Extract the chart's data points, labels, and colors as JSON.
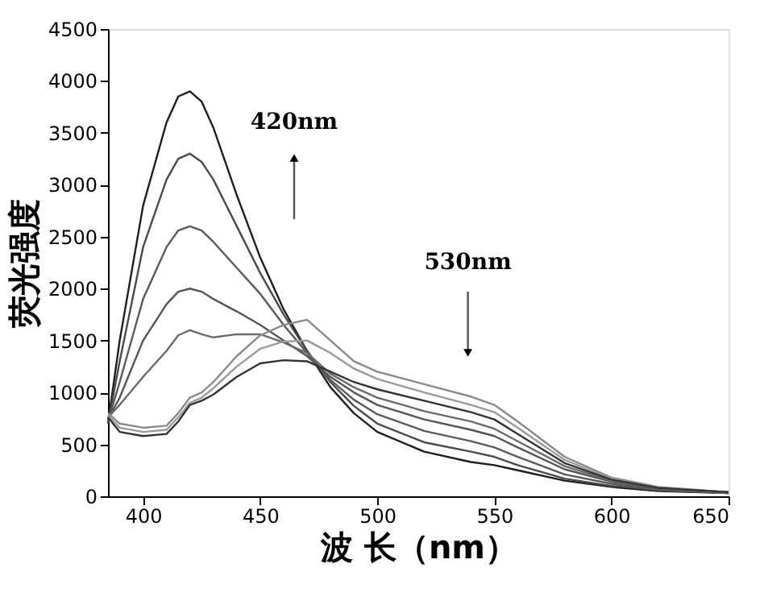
{
  "chart_data": {
    "type": "line",
    "xlabel": "波 长（nm）",
    "ylabel": "荧光强度",
    "x": [
      385,
      390,
      400,
      410,
      415,
      420,
      425,
      430,
      440,
      450,
      460,
      470,
      480,
      490,
      500,
      520,
      540,
      550,
      560,
      580,
      600,
      620,
      650
    ],
    "series": [
      {
        "color": "#1e1e1e",
        "values": [
          700,
          1500,
          2800,
          3600,
          3850,
          3900,
          3800,
          3550,
          2900,
          2300,
          1800,
          1400,
          1050,
          800,
          620,
          430,
          330,
          300,
          250,
          150,
          90,
          50,
          30
        ]
      },
      {
        "color": "#4a4a4a",
        "values": [
          700,
          1300,
          2400,
          3050,
          3250,
          3300,
          3220,
          3050,
          2600,
          2150,
          1750,
          1400,
          1100,
          870,
          700,
          520,
          430,
          380,
          300,
          170,
          100,
          60,
          30
        ]
      },
      {
        "color": "#5a5a5a",
        "values": [
          720,
          1100,
          1900,
          2400,
          2560,
          2600,
          2560,
          2450,
          2200,
          1950,
          1650,
          1380,
          1120,
          930,
          790,
          630,
          530,
          470,
          380,
          210,
          120,
          60,
          30
        ]
      },
      {
        "color": "#555555",
        "values": [
          740,
          950,
          1500,
          1850,
          1970,
          2000,
          1970,
          1900,
          1780,
          1650,
          1500,
          1350,
          1150,
          1000,
          880,
          740,
          640,
          580,
          470,
          260,
          140,
          70,
          40
        ]
      },
      {
        "color": "#6a6a6a",
        "values": [
          760,
          880,
          1150,
          1400,
          1550,
          1600,
          1560,
          1530,
          1560,
          1560,
          1480,
          1380,
          1180,
          1050,
          950,
          820,
          720,
          650,
          530,
          290,
          150,
          80,
          40
        ]
      },
      {
        "color": "#8a8a8a",
        "values": [
          800,
          700,
          660,
          680,
          800,
          950,
          1000,
          1100,
          1350,
          1550,
          1650,
          1700,
          1500,
          1300,
          1200,
          1080,
          960,
          880,
          720,
          380,
          180,
          90,
          40
        ]
      },
      {
        "color": "#9a9a9a",
        "values": [
          780,
          660,
          620,
          640,
          760,
          900,
          950,
          1040,
          1250,
          1420,
          1490,
          1500,
          1380,
          1230,
          1130,
          1000,
          880,
          810,
          660,
          350,
          170,
          80,
          40
        ]
      },
      {
        "color": "#333333",
        "values": [
          760,
          620,
          580,
          600,
          720,
          880,
          920,
          980,
          1150,
          1280,
          1310,
          1300,
          1200,
          1100,
          1030,
          920,
          810,
          740,
          600,
          320,
          160,
          80,
          40
        ]
      }
    ],
    "xlim": [
      385,
      650
    ],
    "xticks": [
      400,
      450,
      500,
      550,
      600,
      650
    ],
    "ylim": [
      0,
      4500
    ],
    "yticks": [
      0,
      500,
      1000,
      1500,
      2000,
      2500,
      3000,
      3500,
      4000,
      4500
    ],
    "annotations": [
      "420nm",
      "530nm"
    ]
  }
}
